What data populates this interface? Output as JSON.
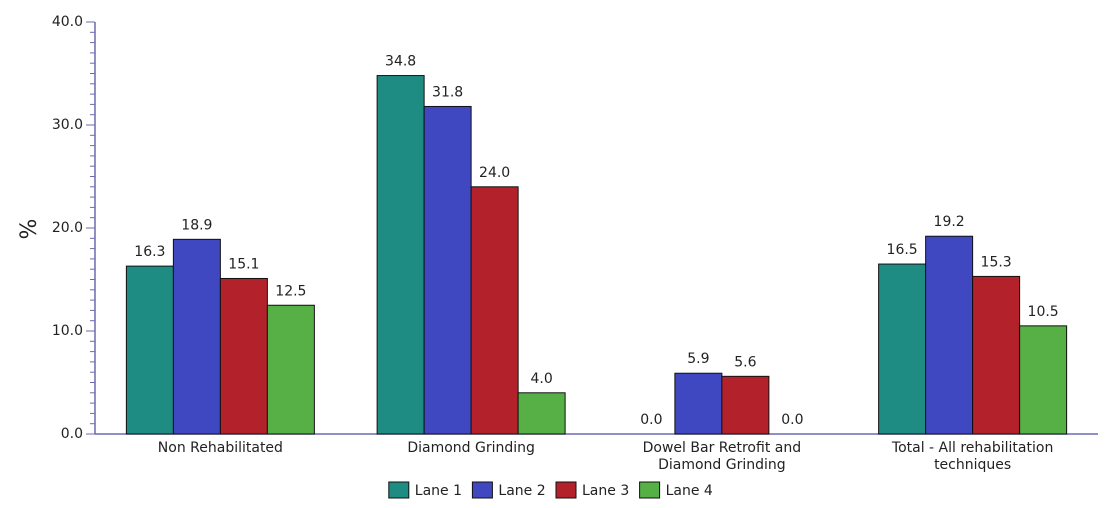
{
  "chart_data": {
    "type": "bar",
    "title": "",
    "xlabel": "",
    "ylabel": "%",
    "ylim": [
      0,
      40
    ],
    "yticks": [
      "0.0",
      "10.0",
      "20.0",
      "30.0",
      "40.0"
    ],
    "categories": [
      [
        "Non Rehabilitated"
      ],
      [
        "Diamond Grinding"
      ],
      [
        "Dowel Bar Retrofit and",
        "Diamond Grinding"
      ],
      [
        "Total - All rehabilitation",
        "techniques"
      ]
    ],
    "series": [
      {
        "name": "Lane 1",
        "color": "#1f8c84",
        "values": [
          16.3,
          34.8,
          0.0,
          16.5
        ],
        "labels": [
          "16.3",
          "34.8",
          "0.0",
          "16.5"
        ]
      },
      {
        "name": "Lane 2",
        "color": "#3f48c0",
        "values": [
          18.9,
          31.8,
          5.9,
          19.2
        ],
        "labels": [
          "18.9",
          "31.8",
          "5.9",
          "19.2"
        ]
      },
      {
        "name": "Lane 3",
        "color": "#b3222a",
        "values": [
          15.1,
          24.0,
          5.6,
          15.3
        ],
        "labels": [
          "15.1",
          "24.0",
          "5.6",
          "15.3"
        ]
      },
      {
        "name": "Lane 4",
        "color": "#56b045",
        "values": [
          12.5,
          4.0,
          0.0,
          10.5
        ],
        "labels": [
          "12.5",
          "4.0",
          "0.0",
          "10.5"
        ]
      }
    ],
    "legend_position": "bottom",
    "grid": false
  }
}
